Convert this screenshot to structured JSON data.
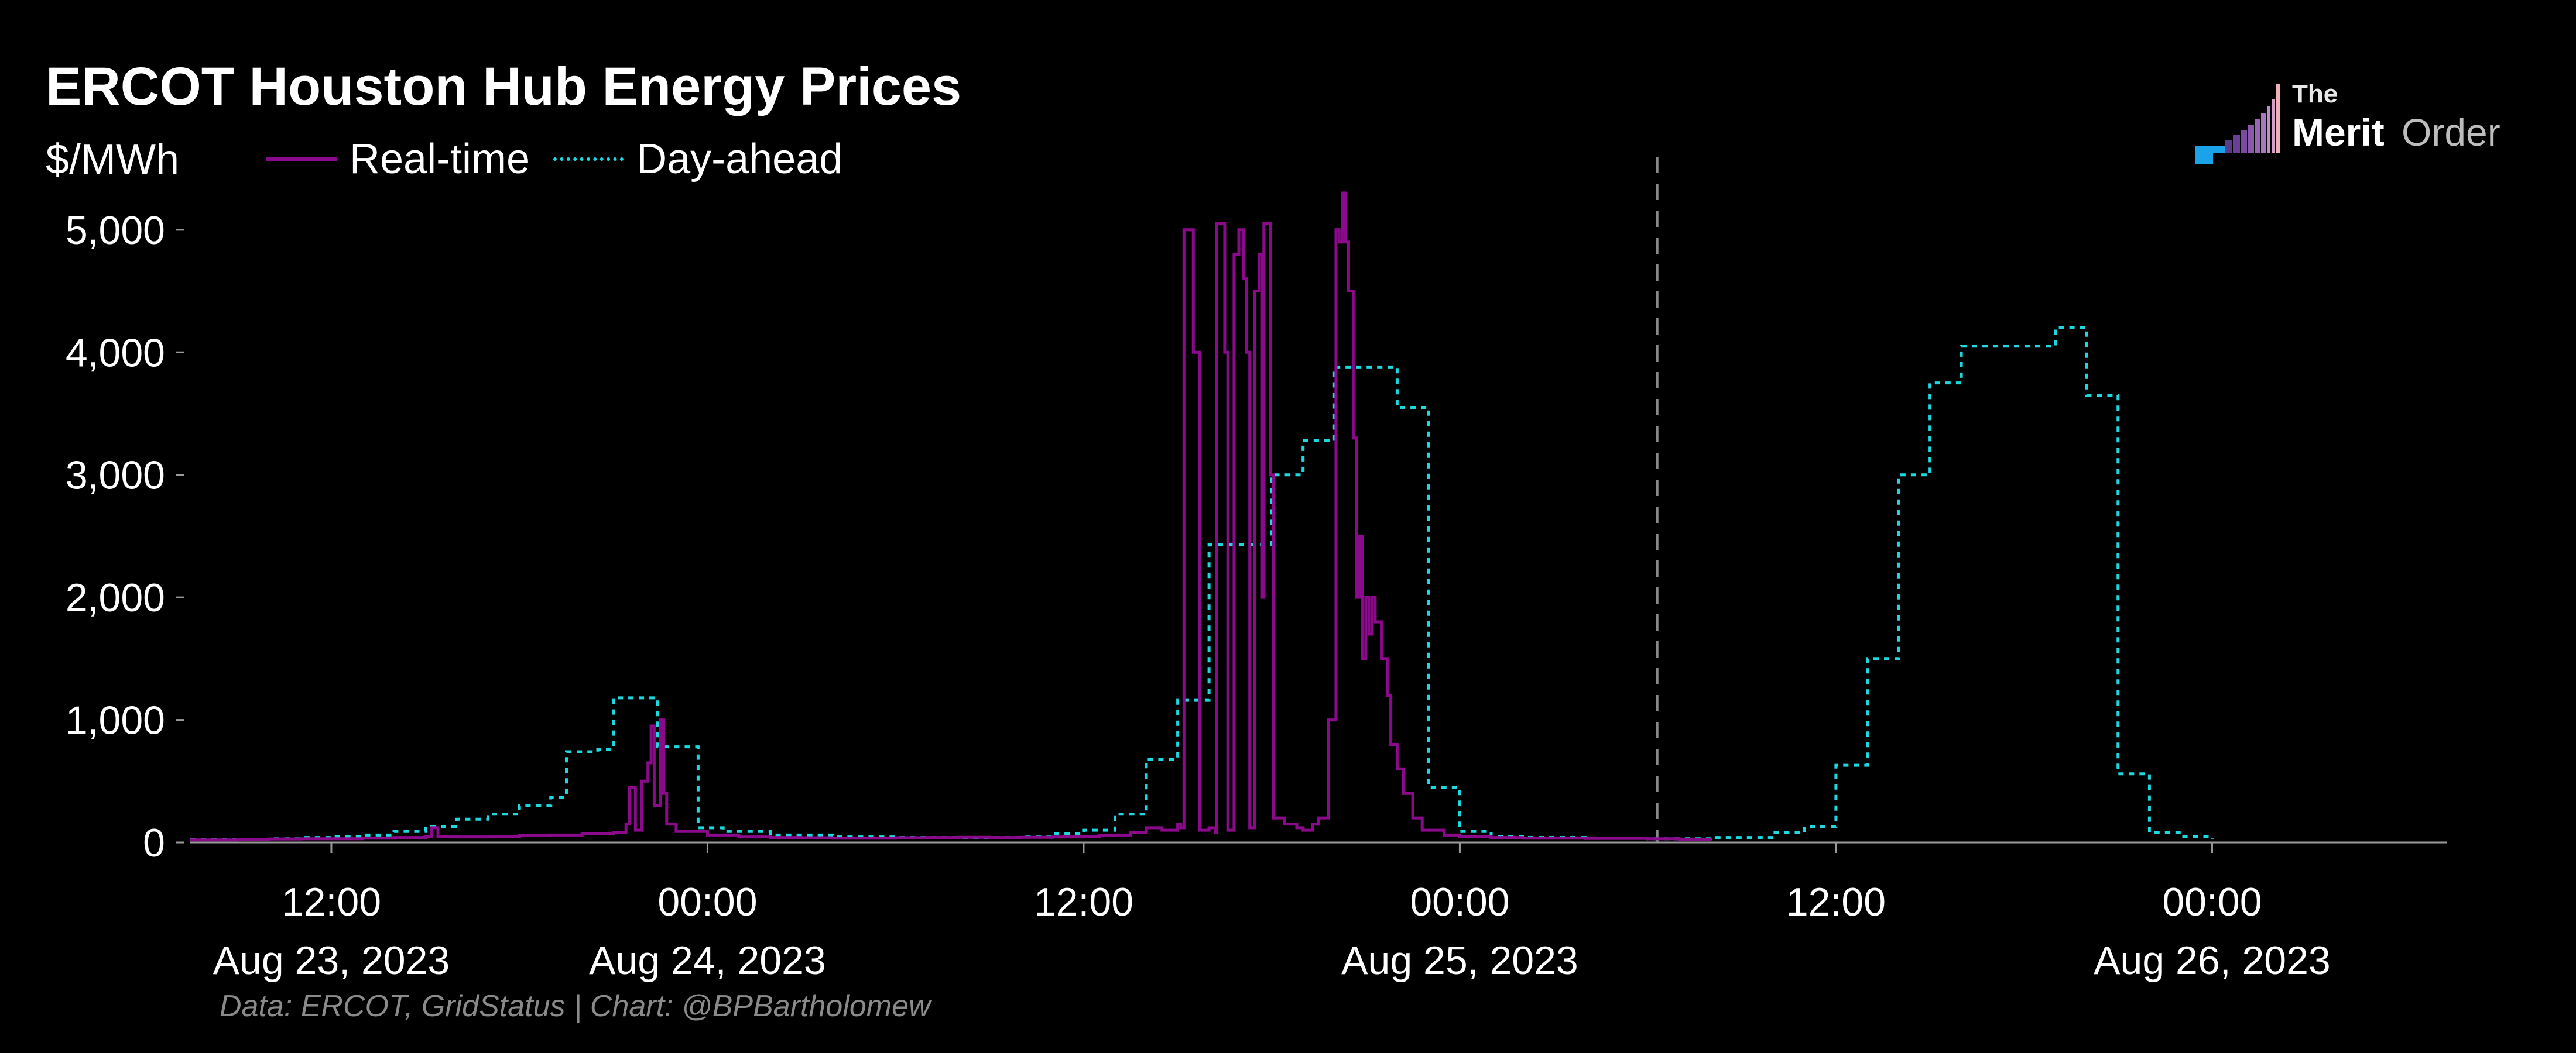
{
  "title": "ERCOT Houston Hub Energy Prices",
  "unit_label": "$/MWh",
  "footer": "Data: ERCOT, GridStatus | Chart: @BPBartholomew",
  "logo": {
    "line1": "The",
    "line2a": "Merit",
    "line2b": "Order"
  },
  "colors": {
    "background": "#000000",
    "realtime": "#8b0a8b",
    "dayahead": "#1ed8e0",
    "divider": "#888888",
    "axis": "#9a9a9a"
  },
  "chart_data": {
    "type": "line",
    "title": "ERCOT Houston Hub Energy Prices",
    "ylabel": "$/MWh",
    "xlabel": "",
    "x_unit": "hours after Aug 23, 2023 00:00",
    "xlim": [
      7.5,
      79.5
    ],
    "ylim": [
      0,
      5300
    ],
    "yticks": [
      0,
      1000,
      2000,
      3000,
      4000,
      5000
    ],
    "ytick_labels": [
      "0",
      "1,000",
      "2,000",
      "3,000",
      "4,000",
      "5,000"
    ],
    "xticks": [
      {
        "x": 12,
        "time": "12:00",
        "date": "Aug 23, 2023"
      },
      {
        "x": 24,
        "time": "00:00",
        "date": "Aug 24, 2023"
      },
      {
        "x": 36,
        "time": "12:00",
        "date": ""
      },
      {
        "x": 48,
        "time": "00:00",
        "date": "Aug 25, 2023"
      },
      {
        "x": 60,
        "time": "12:00",
        "date": ""
      },
      {
        "x": 72,
        "time": "00:00",
        "date": "Aug 26, 2023"
      }
    ],
    "divider_x": 54.3,
    "legend_position": "top-left",
    "grid": false,
    "series": [
      {
        "name": "Real-time",
        "style": "solid",
        "points": [
          [
            7.5,
            20
          ],
          [
            9,
            25
          ],
          [
            10,
            28
          ],
          [
            11,
            30
          ],
          [
            13,
            35
          ],
          [
            14,
            40
          ],
          [
            15,
            50
          ],
          [
            15.2,
            120
          ],
          [
            15.4,
            50
          ],
          [
            16,
            45
          ],
          [
            17,
            50
          ],
          [
            18,
            55
          ],
          [
            19,
            60
          ],
          [
            20,
            70
          ],
          [
            21,
            80
          ],
          [
            21.4,
            150
          ],
          [
            21.5,
            450
          ],
          [
            21.7,
            100
          ],
          [
            21.9,
            500
          ],
          [
            22.1,
            650
          ],
          [
            22.2,
            950
          ],
          [
            22.3,
            300
          ],
          [
            22.5,
            1000
          ],
          [
            22.6,
            400
          ],
          [
            22.7,
            150
          ],
          [
            23,
            90
          ],
          [
            24,
            60
          ],
          [
            25,
            45
          ],
          [
            26,
            40
          ],
          [
            27,
            38
          ],
          [
            28,
            35
          ],
          [
            29,
            35
          ],
          [
            30,
            38
          ],
          [
            31,
            40
          ],
          [
            32,
            42
          ],
          [
            33,
            40
          ],
          [
            34,
            42
          ],
          [
            35,
            45
          ],
          [
            36,
            50
          ],
          [
            36.5,
            55
          ],
          [
            37,
            60
          ],
          [
            37.5,
            80
          ],
          [
            38,
            120
          ],
          [
            38.5,
            100
          ],
          [
            39,
            150
          ],
          [
            39.1,
            120
          ],
          [
            39.2,
            5000
          ],
          [
            39.4,
            5000
          ],
          [
            39.5,
            4000
          ],
          [
            39.7,
            100
          ],
          [
            40,
            120
          ],
          [
            40.2,
            80
          ],
          [
            40.25,
            5050
          ],
          [
            40.4,
            5050
          ],
          [
            40.5,
            4000
          ],
          [
            40.6,
            100
          ],
          [
            40.8,
            4800
          ],
          [
            40.95,
            5000
          ],
          [
            41.1,
            4600
          ],
          [
            41.2,
            4000
          ],
          [
            41.3,
            120
          ],
          [
            41.45,
            4500
          ],
          [
            41.6,
            4800
          ],
          [
            41.7,
            2000
          ],
          [
            41.75,
            5050
          ],
          [
            41.85,
            5050
          ],
          [
            41.95,
            3000
          ],
          [
            42.05,
            200
          ],
          [
            42.4,
            150
          ],
          [
            42.8,
            120
          ],
          [
            43,
            100
          ],
          [
            43.3,
            150
          ],
          [
            43.5,
            200
          ],
          [
            43.8,
            1000
          ],
          [
            44.05,
            5000
          ],
          [
            44.15,
            4900
          ],
          [
            44.25,
            5300
          ],
          [
            44.35,
            4900
          ],
          [
            44.45,
            4500
          ],
          [
            44.6,
            3300
          ],
          [
            44.7,
            2000
          ],
          [
            44.8,
            2500
          ],
          [
            44.9,
            1500
          ],
          [
            45,
            2000
          ],
          [
            45.1,
            1700
          ],
          [
            45.2,
            2000
          ],
          [
            45.3,
            1800
          ],
          [
            45.5,
            1500
          ],
          [
            45.7,
            1200
          ],
          [
            45.8,
            800
          ],
          [
            46,
            600
          ],
          [
            46.2,
            400
          ],
          [
            46.5,
            200
          ],
          [
            46.8,
            100
          ],
          [
            47.5,
            60
          ],
          [
            48,
            50
          ],
          [
            49,
            40
          ],
          [
            50,
            35
          ],
          [
            52,
            32
          ],
          [
            54,
            30
          ],
          [
            55,
            25
          ],
          [
            56,
            20
          ]
        ]
      },
      {
        "name": "Day-ahead",
        "style": "dotted",
        "points": [
          [
            7.5,
            25
          ],
          [
            10,
            30
          ],
          [
            11,
            40
          ],
          [
            12,
            50
          ],
          [
            13,
            60
          ],
          [
            14,
            90
          ],
          [
            15,
            130
          ],
          [
            16,
            190
          ],
          [
            17,
            230
          ],
          [
            18,
            300
          ],
          [
            19,
            370
          ],
          [
            19.5,
            740
          ],
          [
            20.5,
            760
          ],
          [
            21,
            1180
          ],
          [
            22,
            1180
          ],
          [
            22.4,
            780
          ],
          [
            23.5,
            780
          ],
          [
            23.7,
            120
          ],
          [
            24.5,
            90
          ],
          [
            26,
            60
          ],
          [
            28,
            45
          ],
          [
            30,
            40
          ],
          [
            32,
            40
          ],
          [
            34,
            45
          ],
          [
            35,
            70
          ],
          [
            36,
            100
          ],
          [
            37,
            230
          ],
          [
            38,
            680
          ],
          [
            39,
            1160
          ],
          [
            40,
            2430
          ],
          [
            41,
            2430
          ],
          [
            42,
            3000
          ],
          [
            43,
            3280
          ],
          [
            44,
            3880
          ],
          [
            45,
            3880
          ],
          [
            46,
            3550
          ],
          [
            47,
            450
          ],
          [
            48,
            90
          ],
          [
            49,
            50
          ],
          [
            50,
            40
          ],
          [
            52,
            35
          ],
          [
            54,
            30
          ],
          [
            56,
            40
          ],
          [
            58,
            80
          ],
          [
            59,
            130
          ],
          [
            60,
            630
          ],
          [
            61,
            1500
          ],
          [
            62,
            3000
          ],
          [
            63,
            3750
          ],
          [
            64,
            4050
          ],
          [
            65,
            4050
          ],
          [
            66,
            4050
          ],
          [
            67,
            4200
          ],
          [
            68,
            3650
          ],
          [
            69,
            560
          ],
          [
            70,
            80
          ],
          [
            71,
            50
          ],
          [
            72,
            30
          ]
        ]
      }
    ]
  }
}
